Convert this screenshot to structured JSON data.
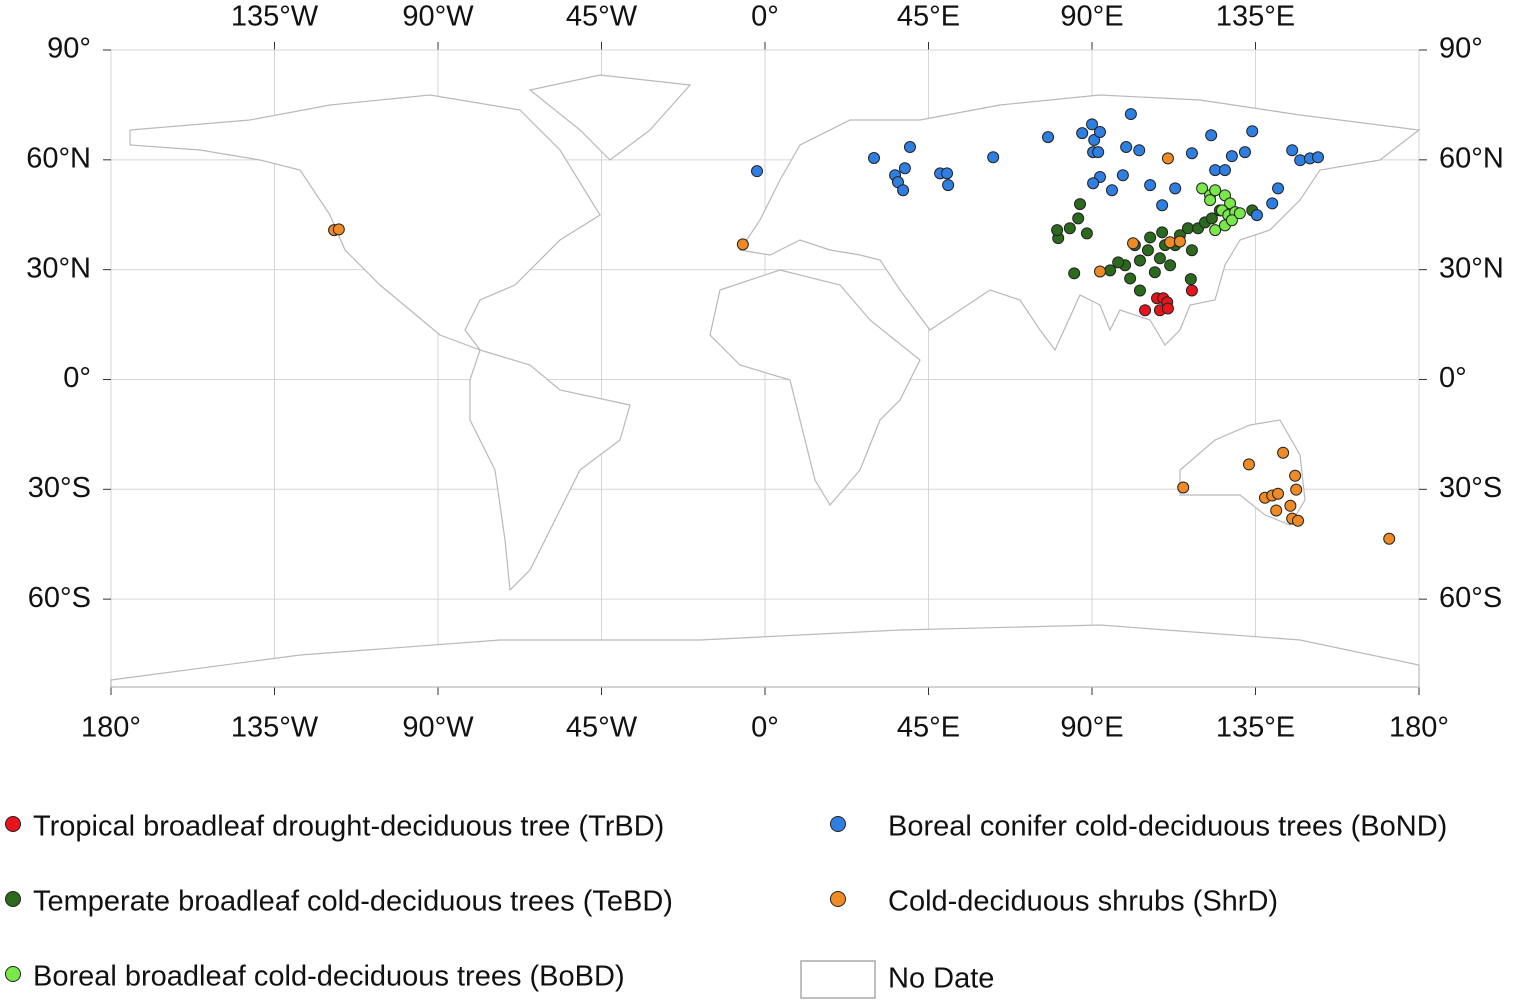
{
  "chart_data": {
    "type": "scatter",
    "xlim": [
      -180,
      180
    ],
    "ylim": [
      -84,
      90
    ],
    "xticks": [
      {
        "value": -180,
        "label": "180°"
      },
      {
        "value": -135,
        "label": "135°W"
      },
      {
        "value": -90,
        "label": "90°W"
      },
      {
        "value": -45,
        "label": "45°W"
      },
      {
        "value": 0,
        "label": "0°"
      },
      {
        "value": 45,
        "label": "45°E"
      },
      {
        "value": 90,
        "label": "90°E"
      },
      {
        "value": 135,
        "label": "135°E"
      },
      {
        "value": 180,
        "label": "180°"
      }
    ],
    "yticks": [
      {
        "value": 90,
        "label": "90°"
      },
      {
        "value": 60,
        "label": "60°N"
      },
      {
        "value": 30,
        "label": "30°N"
      },
      {
        "value": 0,
        "label": "0°"
      },
      {
        "value": -30,
        "label": "30°S"
      },
      {
        "value": -60,
        "label": "60°S"
      }
    ],
    "grid": true,
    "series": [
      {
        "name": "Tropical broadleaf drought-deciduous tree (TrBD)",
        "color": "#e8141b",
        "x": [
          104.6,
          107.9,
          108.7,
          109.6,
          110.7,
          110.9,
          117.5
        ],
        "values": [
          18.9,
          22.2,
          18.9,
          22.2,
          21.1,
          19.4,
          24.3
        ]
      },
      {
        "name": "Temperate broadleaf cold-deciduous trees (TeBD)",
        "color": "#2b6a1d",
        "x": [
          85.1,
          80.7,
          80.4,
          83.9,
          86.2,
          86.7,
          88.6,
          95.0,
          99.1,
          100.5,
          103.2,
          105.4,
          107.3,
          108.7,
          109.3,
          111.5,
          112.9,
          114.2,
          116.4,
          117.5,
          119.2,
          121.1,
          123.0,
          125.2,
          117.2,
          97.2,
          103.2,
          101.8,
          106.0,
          110.1,
          134.1
        ],
        "values": [
          29.0,
          38.6,
          40.8,
          41.3,
          44.0,
          47.9,
          39.9,
          29.8,
          31.2,
          27.6,
          32.5,
          35.3,
          29.3,
          33.1,
          40.2,
          31.2,
          36.7,
          39.4,
          41.3,
          35.3,
          41.3,
          42.9,
          44.0,
          46.2,
          27.4,
          32.0,
          24.3,
          36.7,
          38.8,
          36.7,
          46.2
        ]
      },
      {
        "name": "Boreal broadleaf cold-deciduous trees (BoBD)",
        "color": "#78e84a",
        "x": [
          120.3,
          122.5,
          123.9,
          126.6,
          128.0,
          125.8,
          127.5,
          129.4,
          123.9,
          126.6,
          128.5,
          130.7,
          122.5
        ],
        "values": [
          52.2,
          50.3,
          51.7,
          50.3,
          48.1,
          46.2,
          44.9,
          45.7,
          40.8,
          42.1,
          43.5,
          45.4,
          49.0
        ]
      },
      {
        "name": "Boreal conifer cold-deciduous trees (BoND)",
        "color": "#2f7fe2",
        "x": [
          -2.2,
          30.0,
          35.8,
          38.5,
          36.6,
          38.0,
          39.9,
          48.2,
          50.1,
          50.4,
          62.8,
          77.9,
          87.3,
          90.0,
          90.6,
          92.2,
          90.3,
          91.7,
          99.4,
          103.0,
          100.7,
          92.2,
          90.3,
          95.5,
          98.5,
          106.0,
          109.3,
          112.9,
          117.5,
          122.8,
          123.9,
          126.6,
          128.5,
          132.1,
          134.1,
          139.6,
          141.2,
          145.1,
          147.3,
          150.0,
          152.2,
          135.4
        ],
        "values": [
          56.9,
          60.5,
          55.8,
          57.7,
          53.9,
          51.7,
          63.5,
          56.3,
          56.3,
          53.1,
          60.7,
          66.2,
          67.3,
          69.7,
          65.4,
          67.6,
          62.1,
          62.1,
          63.5,
          62.6,
          72.5,
          55.3,
          53.6,
          51.7,
          55.8,
          53.1,
          47.6,
          52.2,
          61.8,
          66.7,
          57.2,
          57.2,
          61.0,
          62.1,
          67.8,
          48.1,
          52.2,
          62.6,
          59.9,
          60.4,
          60.7,
          44.9
        ]
      },
      {
        "name": "Cold-deciduous shrubs (ShrD)",
        "color": "#f08a24",
        "x": [
          -118.6,
          -117.3,
          -6.1,
          110.9,
          92.2,
          101.3,
          111.5,
          114.2,
          115.1,
          133.2,
          142.6,
          145.9,
          146.2,
          137.6,
          139.6,
          141.2,
          144.6,
          140.7,
          145.1,
          146.7,
          171.8
        ],
        "values": [
          40.8,
          41.0,
          36.9,
          60.4,
          29.5,
          37.2,
          37.5,
          37.7,
          -29.5,
          -23.2,
          -20.0,
          -26.3,
          -30.1,
          -32.3,
          -31.7,
          -31.2,
          -34.5,
          -35.8,
          -38.0,
          -38.6,
          -43.5
        ]
      }
    ],
    "legend_extra": "No Date"
  }
}
